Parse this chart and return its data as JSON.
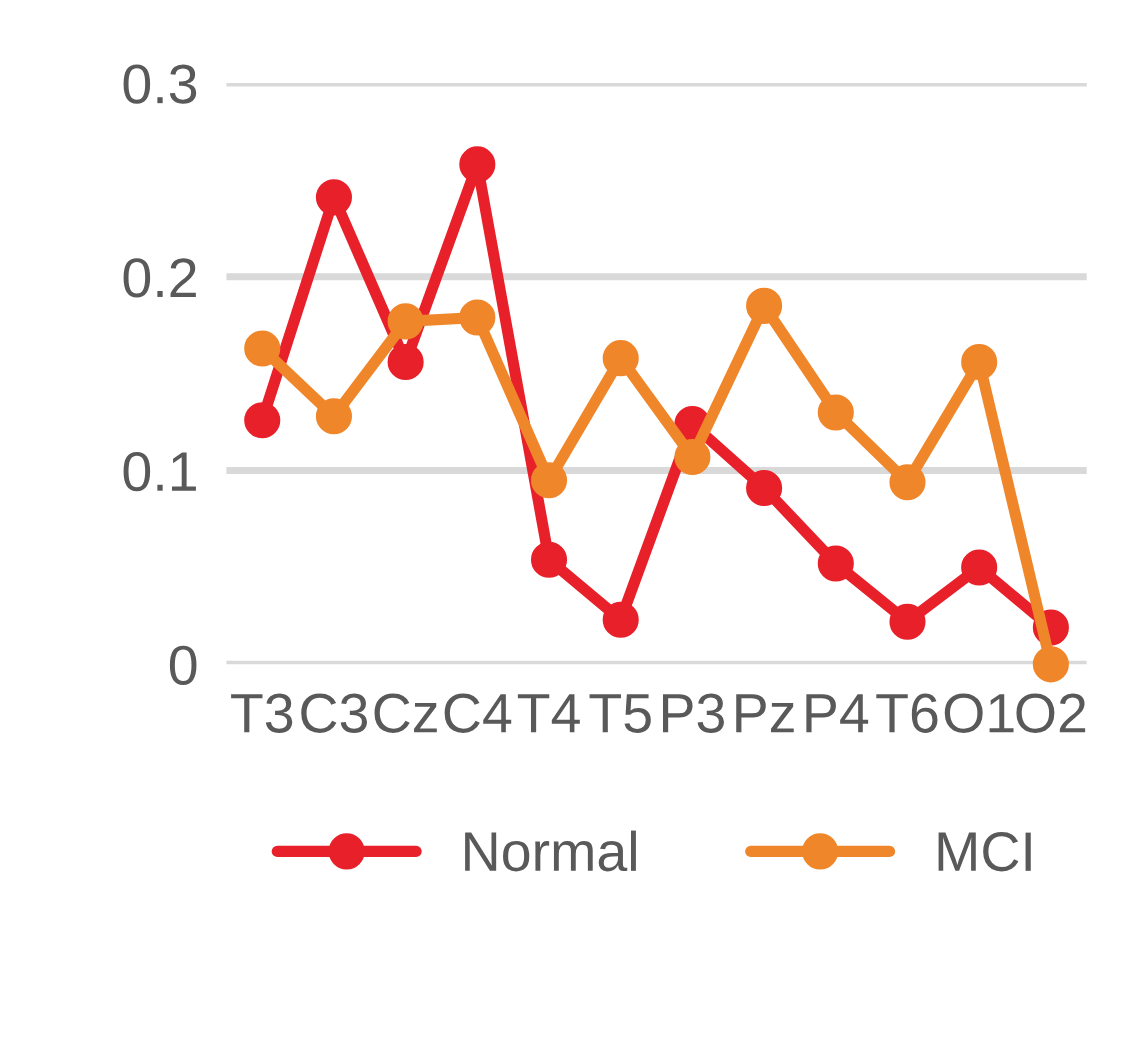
{
  "chart_data": {
    "type": "line",
    "categories": [
      "T3",
      "C3",
      "Cz",
      "C4",
      "T4",
      "T5",
      "P3",
      "Pz",
      "P4",
      "T6",
      "O1",
      "O2"
    ],
    "series": [
      {
        "name": "Normal",
        "color": "#e8202a",
        "values": [
          0.126,
          0.241,
          0.156,
          0.258,
          0.054,
          0.023,
          0.124,
          0.091,
          0.052,
          0.022,
          0.05,
          0.019
        ]
      },
      {
        "name": "MCI",
        "color": "#f0862a",
        "values": [
          0.163,
          0.128,
          0.177,
          0.179,
          0.095,
          0.158,
          0.107,
          0.185,
          0.13,
          0.094,
          0.156,
          0.0
        ]
      }
    ],
    "ylim": [
      0,
      0.3
    ],
    "yticks": [
      {
        "value": 0,
        "label": "0"
      },
      0.1,
      0.2,
      0.3
    ],
    "grid": "y",
    "legend": "bottom",
    "marker": "circle",
    "line_style": "solid"
  }
}
